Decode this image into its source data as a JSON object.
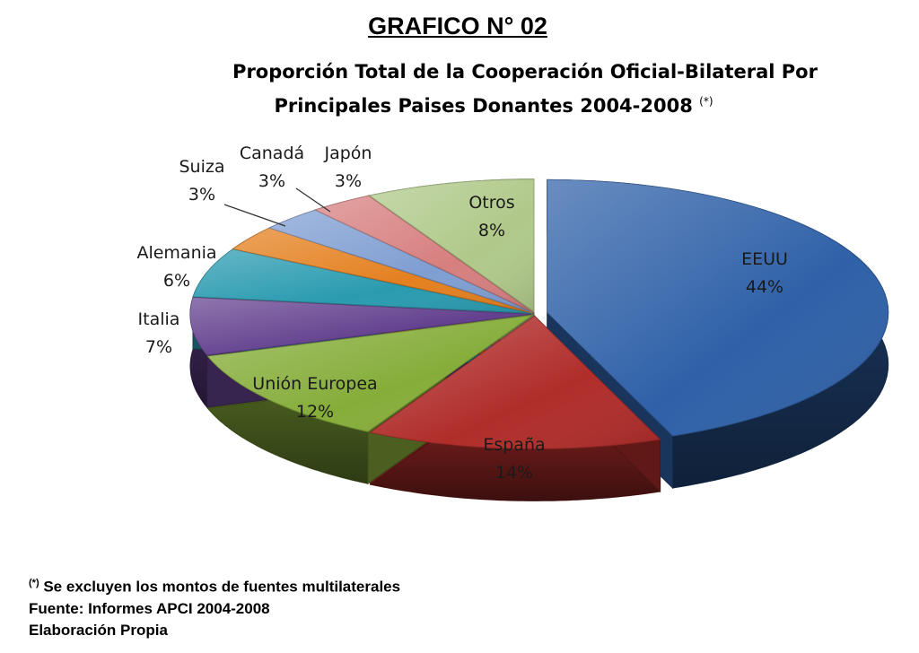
{
  "chart_title": "GRAFICO N° 02",
  "chart_subtitle_line1": "Proporción Total de la Cooperación Oficial-Bilateral Por",
  "chart_subtitle_line2": "Principales Paises Donantes 2004-2008",
  "subtitle_mark": "(*)",
  "footnote_mark": "(*)",
  "footnote_text": "Se excluyen los montos de fuentes multilaterales",
  "source": "Fuente: Informes APCI 2004-2008",
  "credit": "Elaboración Propia",
  "chart_data": {
    "type": "pie",
    "style": "3d-exploded",
    "slices": [
      {
        "label": "EEUU",
        "value": 44,
        "display": "44%",
        "color": "#2f61a8"
      },
      {
        "label": "España",
        "value": 14,
        "display": "14%",
        "color": "#b02d2a"
      },
      {
        "label": "Unión Europea",
        "value": 12,
        "display": "12%",
        "color": "#86ad3a"
      },
      {
        "label": "Italia",
        "value": 7,
        "display": "7%",
        "color": "#64418f"
      },
      {
        "label": "Alemania",
        "value": 6,
        "display": "6%",
        "color": "#2a9bb0"
      },
      {
        "label": "Suiza",
        "value": 3,
        "display": "3%",
        "color": "#e4801f"
      },
      {
        "label": "Canadá",
        "value": 3,
        "display": "3%",
        "color": "#7f9ed2"
      },
      {
        "label": "Japón",
        "value": 3,
        "display": "3%",
        "color": "#d77f7f"
      },
      {
        "label": "Otros",
        "value": 8,
        "display": "8%",
        "color": "#b0c98a"
      }
    ]
  }
}
